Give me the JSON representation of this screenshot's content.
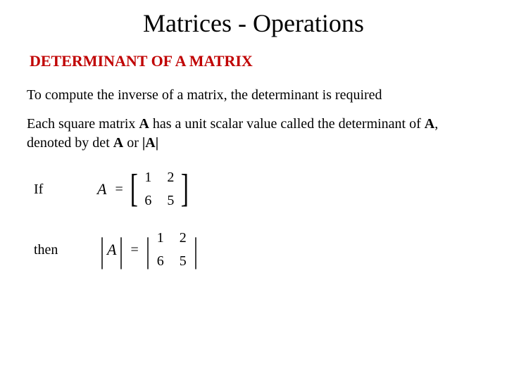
{
  "title": "Matrices - Operations",
  "subtitle": {
    "text": "DETERMINANT OF A MATRIX",
    "color": "#c00000"
  },
  "paragraphs": {
    "p1": "To compute the inverse of a matrix, the determinant is required",
    "p2_part1": "Each square matrix ",
    "p2_bold1": "A",
    "p2_part2": " has a unit scalar value called the determinant of ",
    "p2_bold2": "A",
    "p2_part3": ", denoted by det ",
    "p2_bold3": "A",
    "p2_part4": " or ",
    "p2_bold4": "|A|"
  },
  "math": {
    "label_if": "If",
    "label_then": "then",
    "var_A": "A",
    "equals": "=",
    "matrix": {
      "r1c1": "1",
      "r1c2": "2",
      "r2c1": "6",
      "r2c2": "5"
    },
    "det_matrix": {
      "r1c1": "1",
      "r1c2": "2",
      "r2c1": "6",
      "r2c2": "5"
    }
  },
  "colors": {
    "background": "#ffffff",
    "text": "#000000",
    "accent": "#c00000"
  },
  "typography": {
    "title_fontsize": 36,
    "subtitle_fontsize": 22,
    "body_fontsize": 20,
    "math_fontsize": 20,
    "font_family": "Times New Roman"
  }
}
